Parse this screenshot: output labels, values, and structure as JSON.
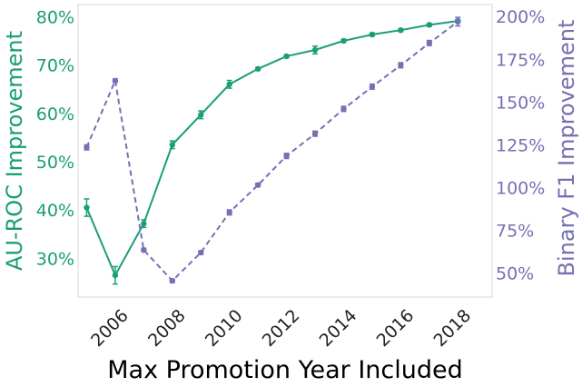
{
  "chart_data": {
    "type": "line",
    "xlabel": "Max Promotion Year Included",
    "ylabel_left": "AU-ROC Improvement",
    "ylabel_right": "Binary F1 Improvement",
    "xlim": [
      2004.7,
      2019.2
    ],
    "ylim_left": [
      22,
      82.5
    ],
    "ylim_right": [
      36,
      207
    ],
    "x_ticks": [
      2006,
      2008,
      2010,
      2012,
      2014,
      2016,
      2018
    ],
    "x_tick_labels": [
      "2006",
      "2008",
      "2010",
      "2012",
      "2014",
      "2016",
      "2018"
    ],
    "y_ticks_left": [
      30,
      40,
      50,
      60,
      70,
      80
    ],
    "y_tick_labels_left": [
      "30%",
      "40%",
      "50%",
      "60%",
      "70%",
      "80%"
    ],
    "y_ticks_right": [
      50,
      75,
      100,
      125,
      150,
      175,
      200
    ],
    "y_tick_labels_right": [
      "50%",
      "75%",
      "100%",
      "125%",
      "150%",
      "175%",
      "200%"
    ],
    "x": [
      2005,
      2006,
      2007,
      2008,
      2009,
      2010,
      2011,
      2012,
      2013,
      2014,
      2015,
      2016,
      2017,
      2018
    ],
    "series": [
      {
        "axis": "left",
        "style": "solid",
        "color": "#1b9e77",
        "values": [
          40.5,
          26.5,
          37.2,
          53.5,
          59.7,
          66.0,
          69.2,
          71.8,
          73.1,
          75.0,
          76.3,
          77.2,
          78.3,
          79.1
        ],
        "errors": [
          1.8,
          1.8,
          0.8,
          0.8,
          0.8,
          0.8,
          0.3,
          0.3,
          0.8,
          0.3,
          0.3,
          0.3,
          0.3,
          0.3
        ]
      },
      {
        "axis": "right",
        "style": "dashed",
        "color": "#7570b3",
        "values": [
          123.5,
          162.5,
          63.5,
          45.5,
          62.0,
          85.5,
          101.5,
          118.5,
          131.5,
          146.0,
          159.0,
          171.5,
          184.5,
          197.0
        ],
        "errors": [
          1.5,
          1.0,
          1.0,
          1.0,
          1.0,
          1.5,
          1.0,
          1.5,
          1.5,
          1.5,
          1.5,
          1.5,
          1.5,
          2.5
        ]
      }
    ]
  }
}
